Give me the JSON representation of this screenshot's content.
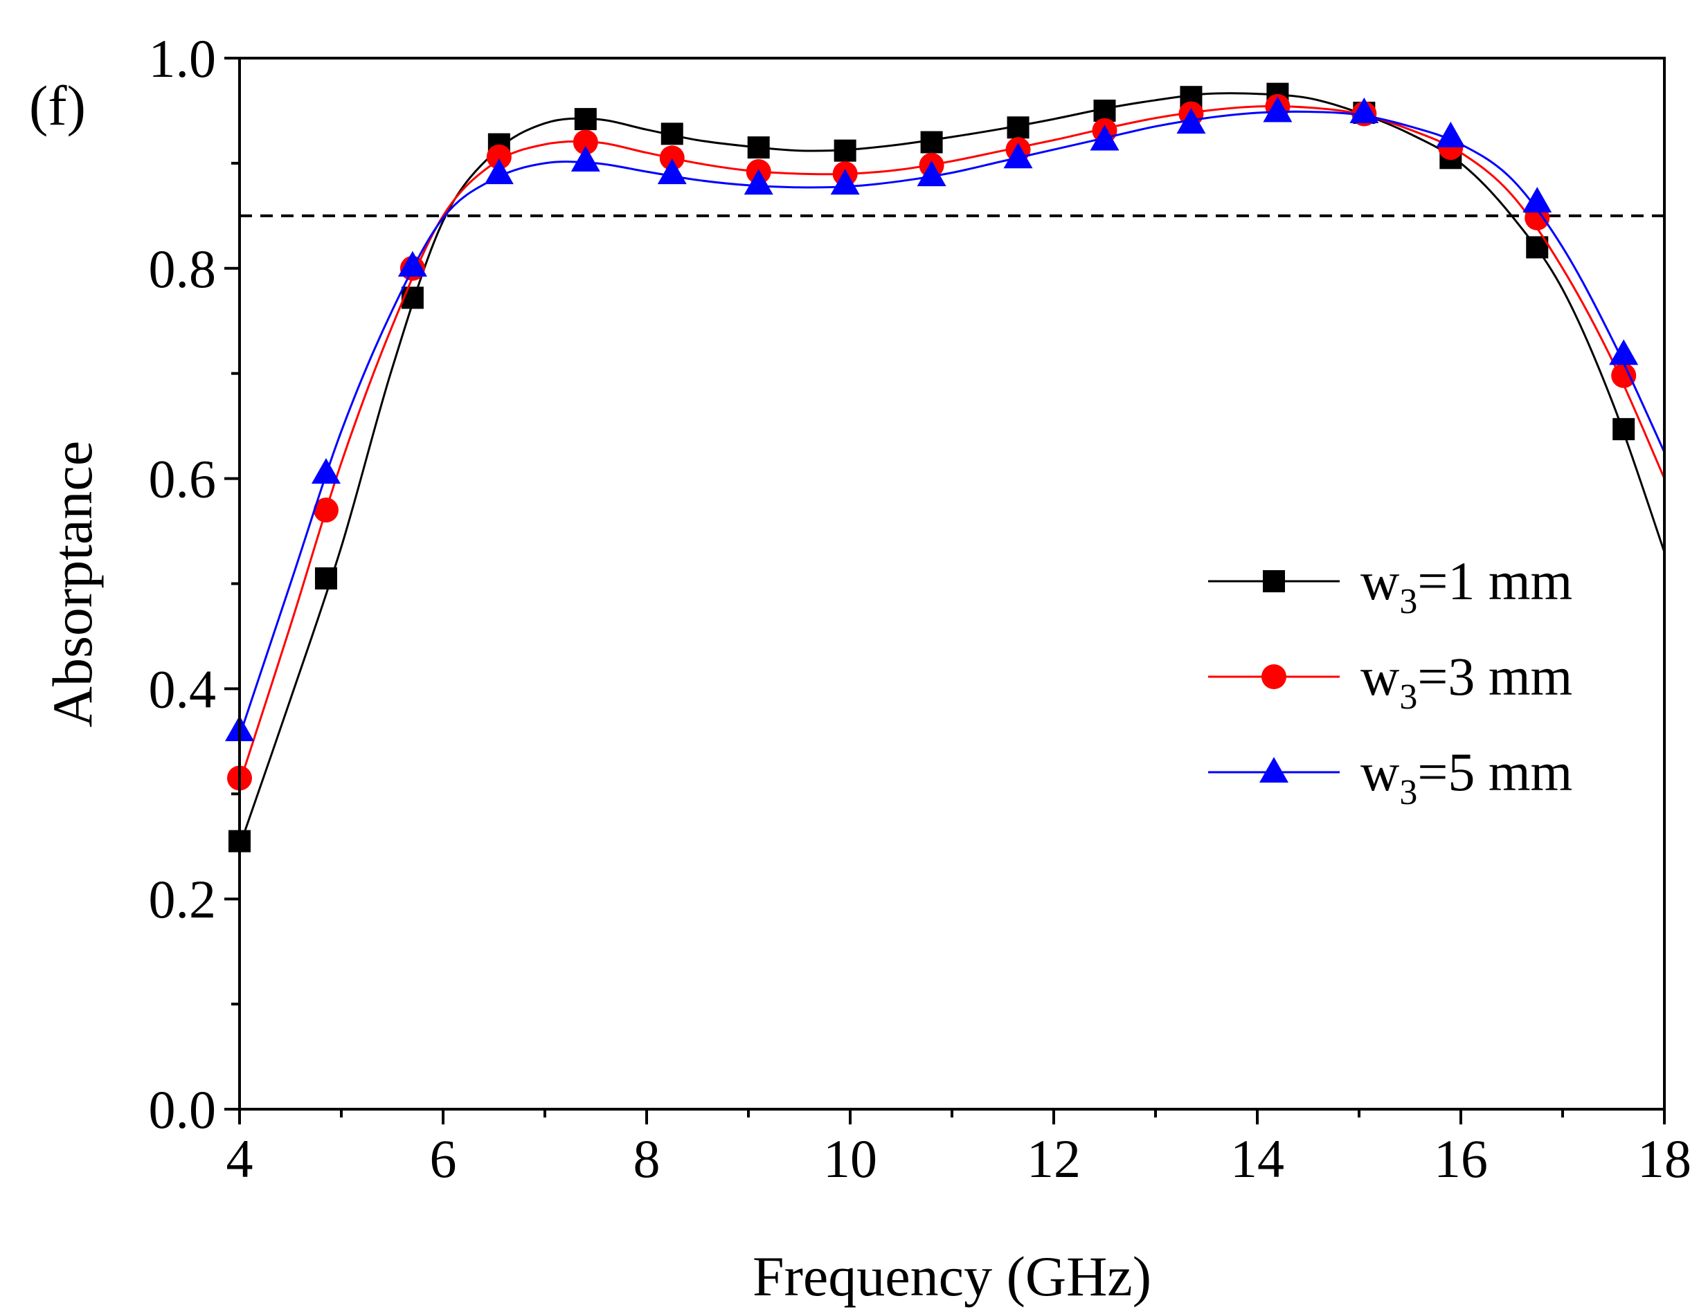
{
  "panel_label": "(f)",
  "chart_data": {
    "type": "line",
    "title": "",
    "xlabel": "Frequency (GHz)",
    "ylabel": "Absorptance",
    "xlim": [
      4,
      18
    ],
    "ylim": [
      0.0,
      1.0
    ],
    "x_ticks": [
      4,
      6,
      8,
      10,
      12,
      14,
      16,
      18
    ],
    "x_tick_labels": [
      "4",
      "6",
      "8",
      "10",
      "12",
      "14",
      "16",
      "18"
    ],
    "y_ticks": [
      0.0,
      0.2,
      0.4,
      0.6,
      0.8,
      1.0
    ],
    "y_tick_labels": [
      "0.0",
      "0.2",
      "0.4",
      "0.6",
      "0.8",
      "1.0"
    ],
    "reference_line": {
      "y": 0.85,
      "style": "dashed",
      "color": "#000000"
    },
    "legend_position": "right-middle",
    "series": [
      {
        "name": "w3=1 mm",
        "legend_main": "w",
        "legend_sub": "3",
        "legend_rest": "=1 mm",
        "color": "#000000",
        "marker": "square",
        "markers_x": [
          4.0,
          4.85,
          5.7,
          6.55,
          7.4,
          8.25,
          9.1,
          9.95,
          10.8,
          11.65,
          12.5,
          13.35,
          14.2,
          15.05,
          15.9,
          16.75,
          17.6
        ],
        "markers_y": [
          0.255,
          0.505,
          0.772,
          0.918,
          0.942,
          0.928,
          0.915,
          0.912,
          0.92,
          0.934,
          0.95,
          0.963,
          0.966,
          0.948,
          0.905,
          0.82,
          0.647
        ],
        "curve_x": [
          4.0,
          4.5,
          5.0,
          5.5,
          6.0,
          6.5,
          7.0,
          7.5,
          8.0,
          8.5,
          9.0,
          9.5,
          10.0,
          10.5,
          11.0,
          11.5,
          12.0,
          12.5,
          13.0,
          13.5,
          14.0,
          14.5,
          15.0,
          15.5,
          16.0,
          16.5,
          17.0,
          17.5,
          18.0
        ],
        "curve_y": [
          0.25,
          0.39,
          0.535,
          0.705,
          0.845,
          0.91,
          0.938,
          0.942,
          0.932,
          0.922,
          0.916,
          0.912,
          0.913,
          0.918,
          0.925,
          0.933,
          0.942,
          0.952,
          0.96,
          0.966,
          0.966,
          0.962,
          0.948,
          0.928,
          0.9,
          0.85,
          0.78,
          0.67,
          0.53
        ]
      },
      {
        "name": "w3=3 mm",
        "legend_main": "w",
        "legend_sub": "3",
        "legend_rest": "=3 mm",
        "color": "#ff0000",
        "marker": "circle",
        "markers_x": [
          4.0,
          4.85,
          5.7,
          6.55,
          7.4,
          8.25,
          9.1,
          9.95,
          10.8,
          11.65,
          12.5,
          13.35,
          14.2,
          15.05,
          15.9,
          16.75,
          17.6
        ],
        "markers_y": [
          0.315,
          0.57,
          0.8,
          0.906,
          0.92,
          0.905,
          0.892,
          0.89,
          0.898,
          0.913,
          0.931,
          0.947,
          0.954,
          0.947,
          0.915,
          0.848,
          0.698
        ],
        "curve_x": [
          4.0,
          4.5,
          5.0,
          5.5,
          6.0,
          6.5,
          7.0,
          7.5,
          8.0,
          8.5,
          9.0,
          9.5,
          10.0,
          10.5,
          11.0,
          11.5,
          12.0,
          12.5,
          13.0,
          13.5,
          14.0,
          14.5,
          15.0,
          15.5,
          16.0,
          16.5,
          17.0,
          17.5,
          18.0
        ],
        "curve_y": [
          0.31,
          0.46,
          0.615,
          0.745,
          0.85,
          0.9,
          0.918,
          0.92,
          0.91,
          0.9,
          0.893,
          0.89,
          0.89,
          0.894,
          0.902,
          0.912,
          0.922,
          0.933,
          0.943,
          0.95,
          0.954,
          0.953,
          0.947,
          0.932,
          0.91,
          0.87,
          0.8,
          0.71,
          0.6
        ]
      },
      {
        "name": "w3=5 mm",
        "legend_main": "w",
        "legend_sub": "3",
        "legend_rest": "=5 mm",
        "color": "#0000ff",
        "marker": "triangle",
        "markers_x": [
          4.0,
          4.85,
          5.7,
          6.55,
          7.4,
          8.25,
          9.1,
          9.95,
          10.8,
          11.65,
          12.5,
          13.35,
          14.2,
          15.05,
          15.9,
          16.75,
          17.6
        ],
        "markers_y": [
          0.36,
          0.605,
          0.802,
          0.89,
          0.902,
          0.89,
          0.88,
          0.88,
          0.888,
          0.905,
          0.922,
          0.938,
          0.949,
          0.948,
          0.925,
          0.863,
          0.718
        ],
        "curve_x": [
          4.0,
          4.5,
          5.0,
          5.5,
          6.0,
          6.5,
          7.0,
          7.5,
          8.0,
          8.5,
          9.0,
          9.5,
          10.0,
          10.5,
          11.0,
          11.5,
          12.0,
          12.5,
          13.0,
          13.5,
          14.0,
          14.5,
          15.0,
          15.5,
          16.0,
          16.5,
          17.0,
          17.5,
          18.0
        ],
        "curve_y": [
          0.355,
          0.5,
          0.645,
          0.76,
          0.848,
          0.885,
          0.9,
          0.9,
          0.892,
          0.884,
          0.879,
          0.877,
          0.878,
          0.883,
          0.891,
          0.902,
          0.913,
          0.924,
          0.935,
          0.943,
          0.948,
          0.949,
          0.946,
          0.935,
          0.918,
          0.885,
          0.82,
          0.73,
          0.625
        ]
      }
    ]
  }
}
